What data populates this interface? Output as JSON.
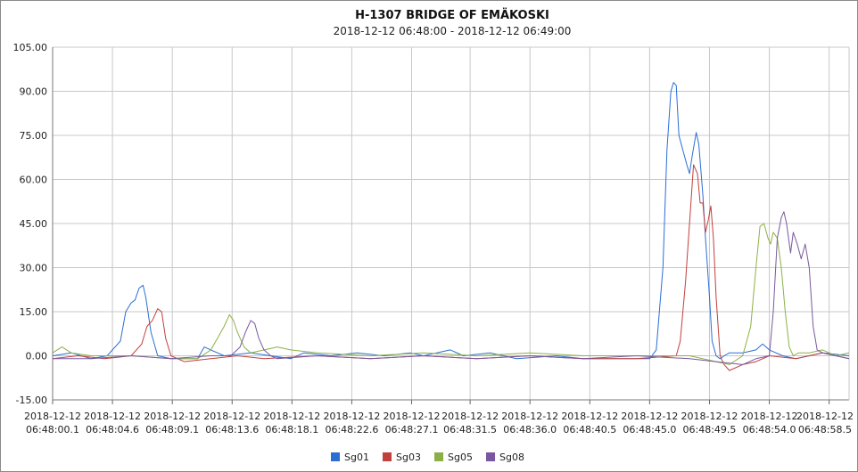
{
  "chart_data": {
    "type": "line",
    "title": "H-1307 BRIDGE OF EMÄKOSKI",
    "subtitle": "2018-12-12 06:48:00 - 2018-12-12 06:49:00",
    "xlabel": "",
    "ylabel": "",
    "xlim": [
      0.1,
      60.0
    ],
    "ylim": [
      -15,
      105
    ],
    "grid": true,
    "legend_position": "bottom",
    "y_ticks": [
      "-15.00",
      "0.00",
      "15.00",
      "30.00",
      "45.00",
      "60.00",
      "75.00",
      "90.00",
      "105.00"
    ],
    "y_tick_values": [
      -15,
      0,
      15,
      30,
      45,
      60,
      75,
      90,
      105
    ],
    "x_tick_values": [
      0.1,
      4.6,
      9.1,
      13.6,
      18.1,
      22.6,
      27.1,
      31.5,
      36.0,
      40.5,
      45.0,
      49.5,
      54.0,
      58.5
    ],
    "x_tick_dates": [
      "2018-12-12",
      "2018-12-12",
      "2018-12-12",
      "2018-12-12",
      "2018-12-12",
      "2018-12-12",
      "2018-12-12",
      "2018-12-12",
      "2018-12-12",
      "2018-12-12",
      "2018-12-12",
      "2018-12-12",
      "2018-12-12",
      "2018-12-12"
    ],
    "x_tick_times": [
      "06:48:00.1",
      "06:48:04.6",
      "06:48:09.1",
      "06:48:13.6",
      "06:48:18.1",
      "06:48:22.6",
      "06:48:27.1",
      "06:48:31.5",
      "06:48:36.0",
      "06:48:40.5",
      "06:48:45.0",
      "06:48:49.5",
      "06:48:54.0",
      "06:48:58.5"
    ],
    "series": [
      {
        "name": "Sg01",
        "color": "#2a6ed4",
        "x": [
          0.1,
          1.5,
          3.0,
          4.2,
          5.2,
          5.6,
          6.0,
          6.3,
          6.6,
          6.9,
          7.1,
          7.5,
          8.0,
          9.0,
          11.0,
          11.5,
          12.0,
          13.0,
          15.0,
          18.0,
          19.0,
          21.0,
          23.0,
          25.0,
          27.0,
          28.0,
          30.0,
          31.0,
          33.0,
          35.0,
          38.0,
          40.0,
          43.0,
          45.0,
          45.5,
          46.0,
          46.3,
          46.6,
          46.8,
          47.0,
          47.2,
          47.5,
          47.8,
          48.0,
          48.2,
          48.5,
          48.7,
          49.0,
          49.2,
          49.5,
          49.7,
          50.0,
          50.3,
          50.6,
          51.0,
          52.0,
          53.0,
          53.5,
          54.0,
          55.0,
          56.0,
          58.0,
          60.0
        ],
        "y": [
          0,
          1,
          -1,
          0,
          5,
          15,
          18,
          19,
          23,
          24,
          20,
          8,
          0,
          -1,
          -1,
          3,
          2,
          0,
          1,
          -1,
          1,
          0,
          1,
          0,
          1,
          0,
          2,
          0,
          1,
          -1,
          0,
          -1,
          -1,
          -1,
          2,
          30,
          70,
          90,
          93,
          92,
          75,
          70,
          65,
          62,
          68,
          76,
          72,
          55,
          40,
          20,
          5,
          0,
          -1,
          0,
          1,
          1,
          2,
          4,
          2,
          0,
          -1,
          1,
          0
        ]
      },
      {
        "name": "Sg03",
        "color": "#c0403c",
        "x": [
          0.1,
          2.0,
          4.0,
          6.0,
          6.8,
          7.2,
          7.6,
          8.0,
          8.3,
          8.6,
          9.0,
          10.0,
          12.0,
          14.0,
          16.0,
          20.0,
          24.0,
          28.0,
          32.0,
          36.0,
          40.0,
          44.0,
          47.0,
          47.3,
          47.7,
          48.0,
          48.3,
          48.6,
          48.8,
          49.0,
          49.2,
          49.4,
          49.6,
          49.8,
          50.0,
          50.3,
          50.6,
          51.0,
          52.0,
          53.0,
          54.0,
          56.0,
          58.0,
          60.0
        ],
        "y": [
          -1,
          0,
          -1,
          0,
          4,
          10,
          12,
          16,
          15,
          6,
          0,
          -2,
          -1,
          0,
          -1,
          0,
          -1,
          0,
          -1,
          0,
          -1,
          -1,
          0,
          5,
          25,
          45,
          65,
          62,
          52,
          52,
          42,
          46,
          51,
          40,
          20,
          0,
          -3,
          -5,
          -3,
          -2,
          0,
          -1,
          1,
          -1
        ]
      },
      {
        "name": "Sg05",
        "color": "#8db046",
        "x": [
          0.1,
          0.8,
          1.5,
          3.0,
          6.0,
          9.0,
          11.0,
          12.0,
          12.5,
          13.0,
          13.4,
          13.7,
          14.0,
          14.5,
          15.0,
          17.0,
          18.0,
          20.0,
          24.0,
          28.0,
          32.0,
          36.0,
          40.0,
          44.0,
          48.0,
          50.0,
          51.0,
          52.0,
          52.6,
          53.0,
          53.3,
          53.6,
          53.9,
          54.1,
          54.3,
          54.6,
          54.9,
          55.2,
          55.5,
          55.8,
          56.2,
          57.0,
          58.0,
          59.0,
          60.0
        ],
        "y": [
          1,
          3,
          1,
          0,
          0,
          -1,
          -1,
          2,
          6,
          10,
          14,
          12,
          8,
          3,
          1,
          3,
          2,
          1,
          0,
          1,
          0,
          1,
          0,
          0,
          0,
          -2,
          -3,
          0,
          10,
          30,
          44,
          45,
          40,
          38,
          42,
          40,
          30,
          15,
          3,
          0,
          1,
          1,
          2,
          0,
          1
        ]
      },
      {
        "name": "Sg08",
        "color": "#7a579e",
        "x": [
          0.1,
          3.0,
          6.0,
          9.0,
          12.0,
          13.5,
          14.2,
          14.6,
          15.0,
          15.3,
          15.6,
          16.0,
          16.5,
          17.0,
          20.0,
          24.0,
          28.0,
          32.0,
          36.0,
          40.0,
          44.0,
          48.0,
          50.0,
          52.0,
          53.0,
          54.0,
          54.3,
          54.6,
          54.9,
          55.1,
          55.3,
          55.6,
          55.8,
          56.1,
          56.4,
          56.7,
          57.0,
          57.3,
          57.6,
          58.0,
          59.0,
          60.0
        ],
        "y": [
          -1,
          -1,
          0,
          -1,
          0,
          0,
          3,
          8,
          12,
          11,
          6,
          2,
          0,
          -1,
          0,
          -1,
          0,
          -1,
          0,
          -1,
          0,
          -1,
          -2,
          -3,
          -1,
          0,
          15,
          40,
          47,
          49,
          45,
          35,
          42,
          38,
          33,
          38,
          30,
          10,
          2,
          1,
          0,
          -1
        ]
      }
    ]
  }
}
